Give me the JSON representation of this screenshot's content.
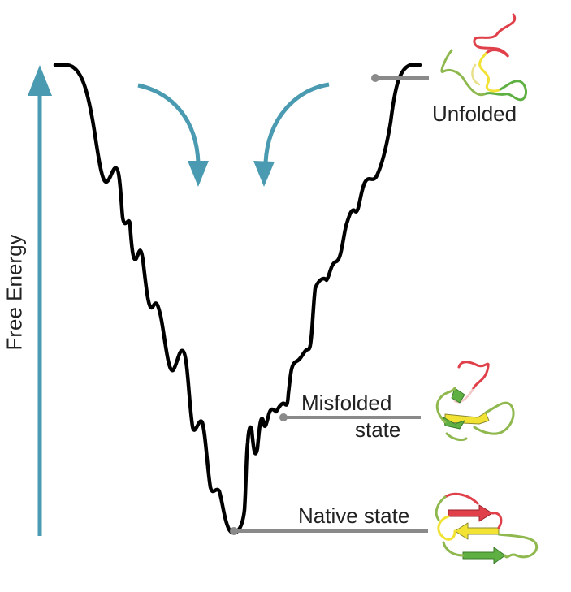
{
  "axis": {
    "label": "Free Energy"
  },
  "states": {
    "unfolded": "Unfolded",
    "misfolded_line1": "Misfolded",
    "misfolded_line2": "state",
    "native": "Native state"
  },
  "colors": {
    "landscape": "#000000",
    "arrows": "#4a9bb1",
    "leader": "#8a8a8a",
    "protein_red": "#e0404a",
    "protein_yellow": "#f2e233",
    "protein_green": "#5fb043",
    "protein_olive": "#8fb84e"
  },
  "icons": [
    "energy-axis-arrow",
    "funnel-arrow-left",
    "funnel-arrow-right",
    "unfolded-protein-icon",
    "misfolded-protein-icon",
    "native-protein-icon"
  ]
}
